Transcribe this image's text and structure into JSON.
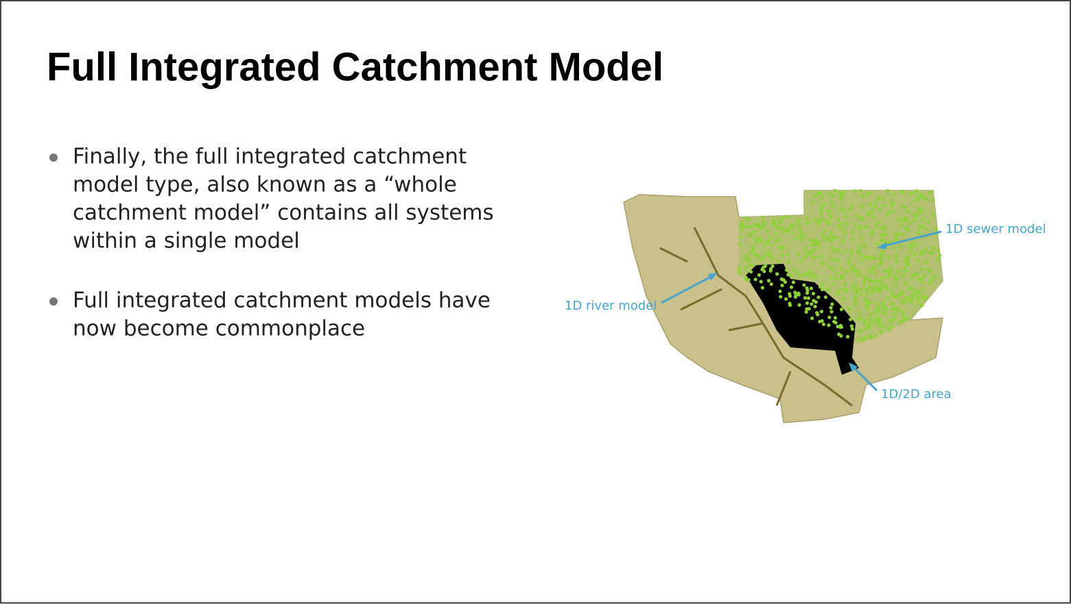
{
  "header": {
    "title": "Full Integrated Catchment Model"
  },
  "bullets": [
    [
      "Finally, the full integrated catchment",
      "model type, also known as a “whole",
      "catchment model” contains all systems",
      "within a single model"
    ],
    [
      "Full integrated catchment models have",
      "now become commonplace"
    ]
  ],
  "figure": {
    "labels": {
      "sewer": "1D sewer model",
      "river": "1D river model",
      "area": "1D/2D area"
    }
  }
}
